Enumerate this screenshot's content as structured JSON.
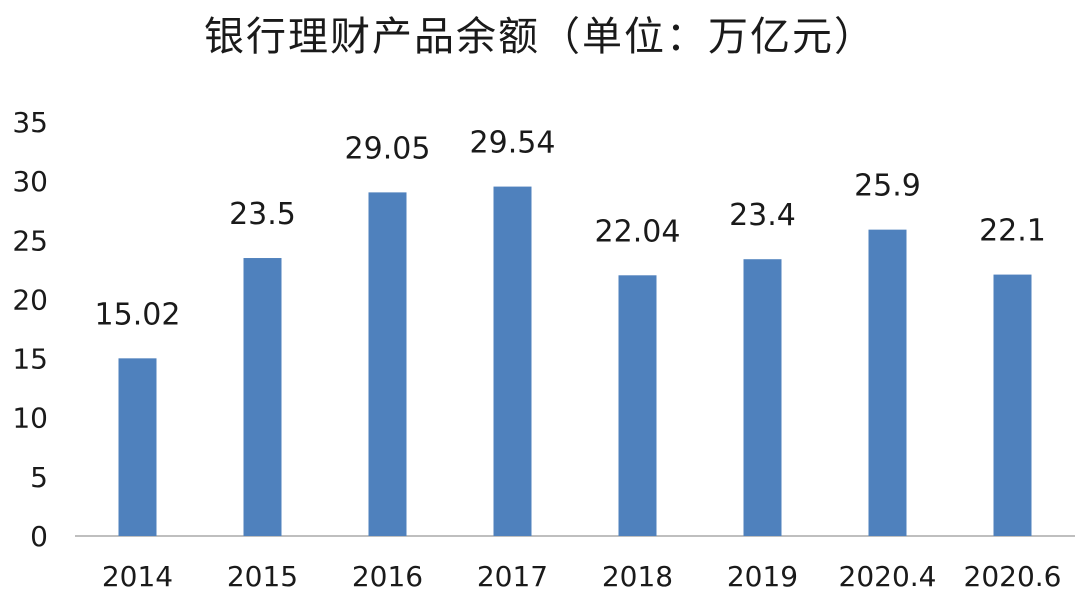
{
  "chart_data": {
    "type": "bar",
    "title": "银行理财产品余额（单位：万亿元）",
    "categories": [
      "2014",
      "2015",
      "2016",
      "2017",
      "2018",
      "2019",
      "2020.4",
      "2020.6"
    ],
    "values": [
      15.02,
      23.5,
      29.05,
      29.54,
      22.04,
      23.4,
      25.9,
      22.1
    ],
    "data_labels": [
      "15.02",
      "23.5",
      "29.05",
      "29.54",
      "22.04",
      "23.4",
      "25.9",
      "22.1"
    ],
    "y_ticks": [
      0,
      5,
      10,
      15,
      20,
      25,
      30,
      35
    ],
    "ylim": [
      0,
      35
    ],
    "xlabel": "",
    "ylabel": "",
    "grid": false,
    "legend": "none",
    "bar_color": "#4f81bd",
    "axis_color": "#bfbfbf",
    "text_color": "#1a1a1a"
  }
}
